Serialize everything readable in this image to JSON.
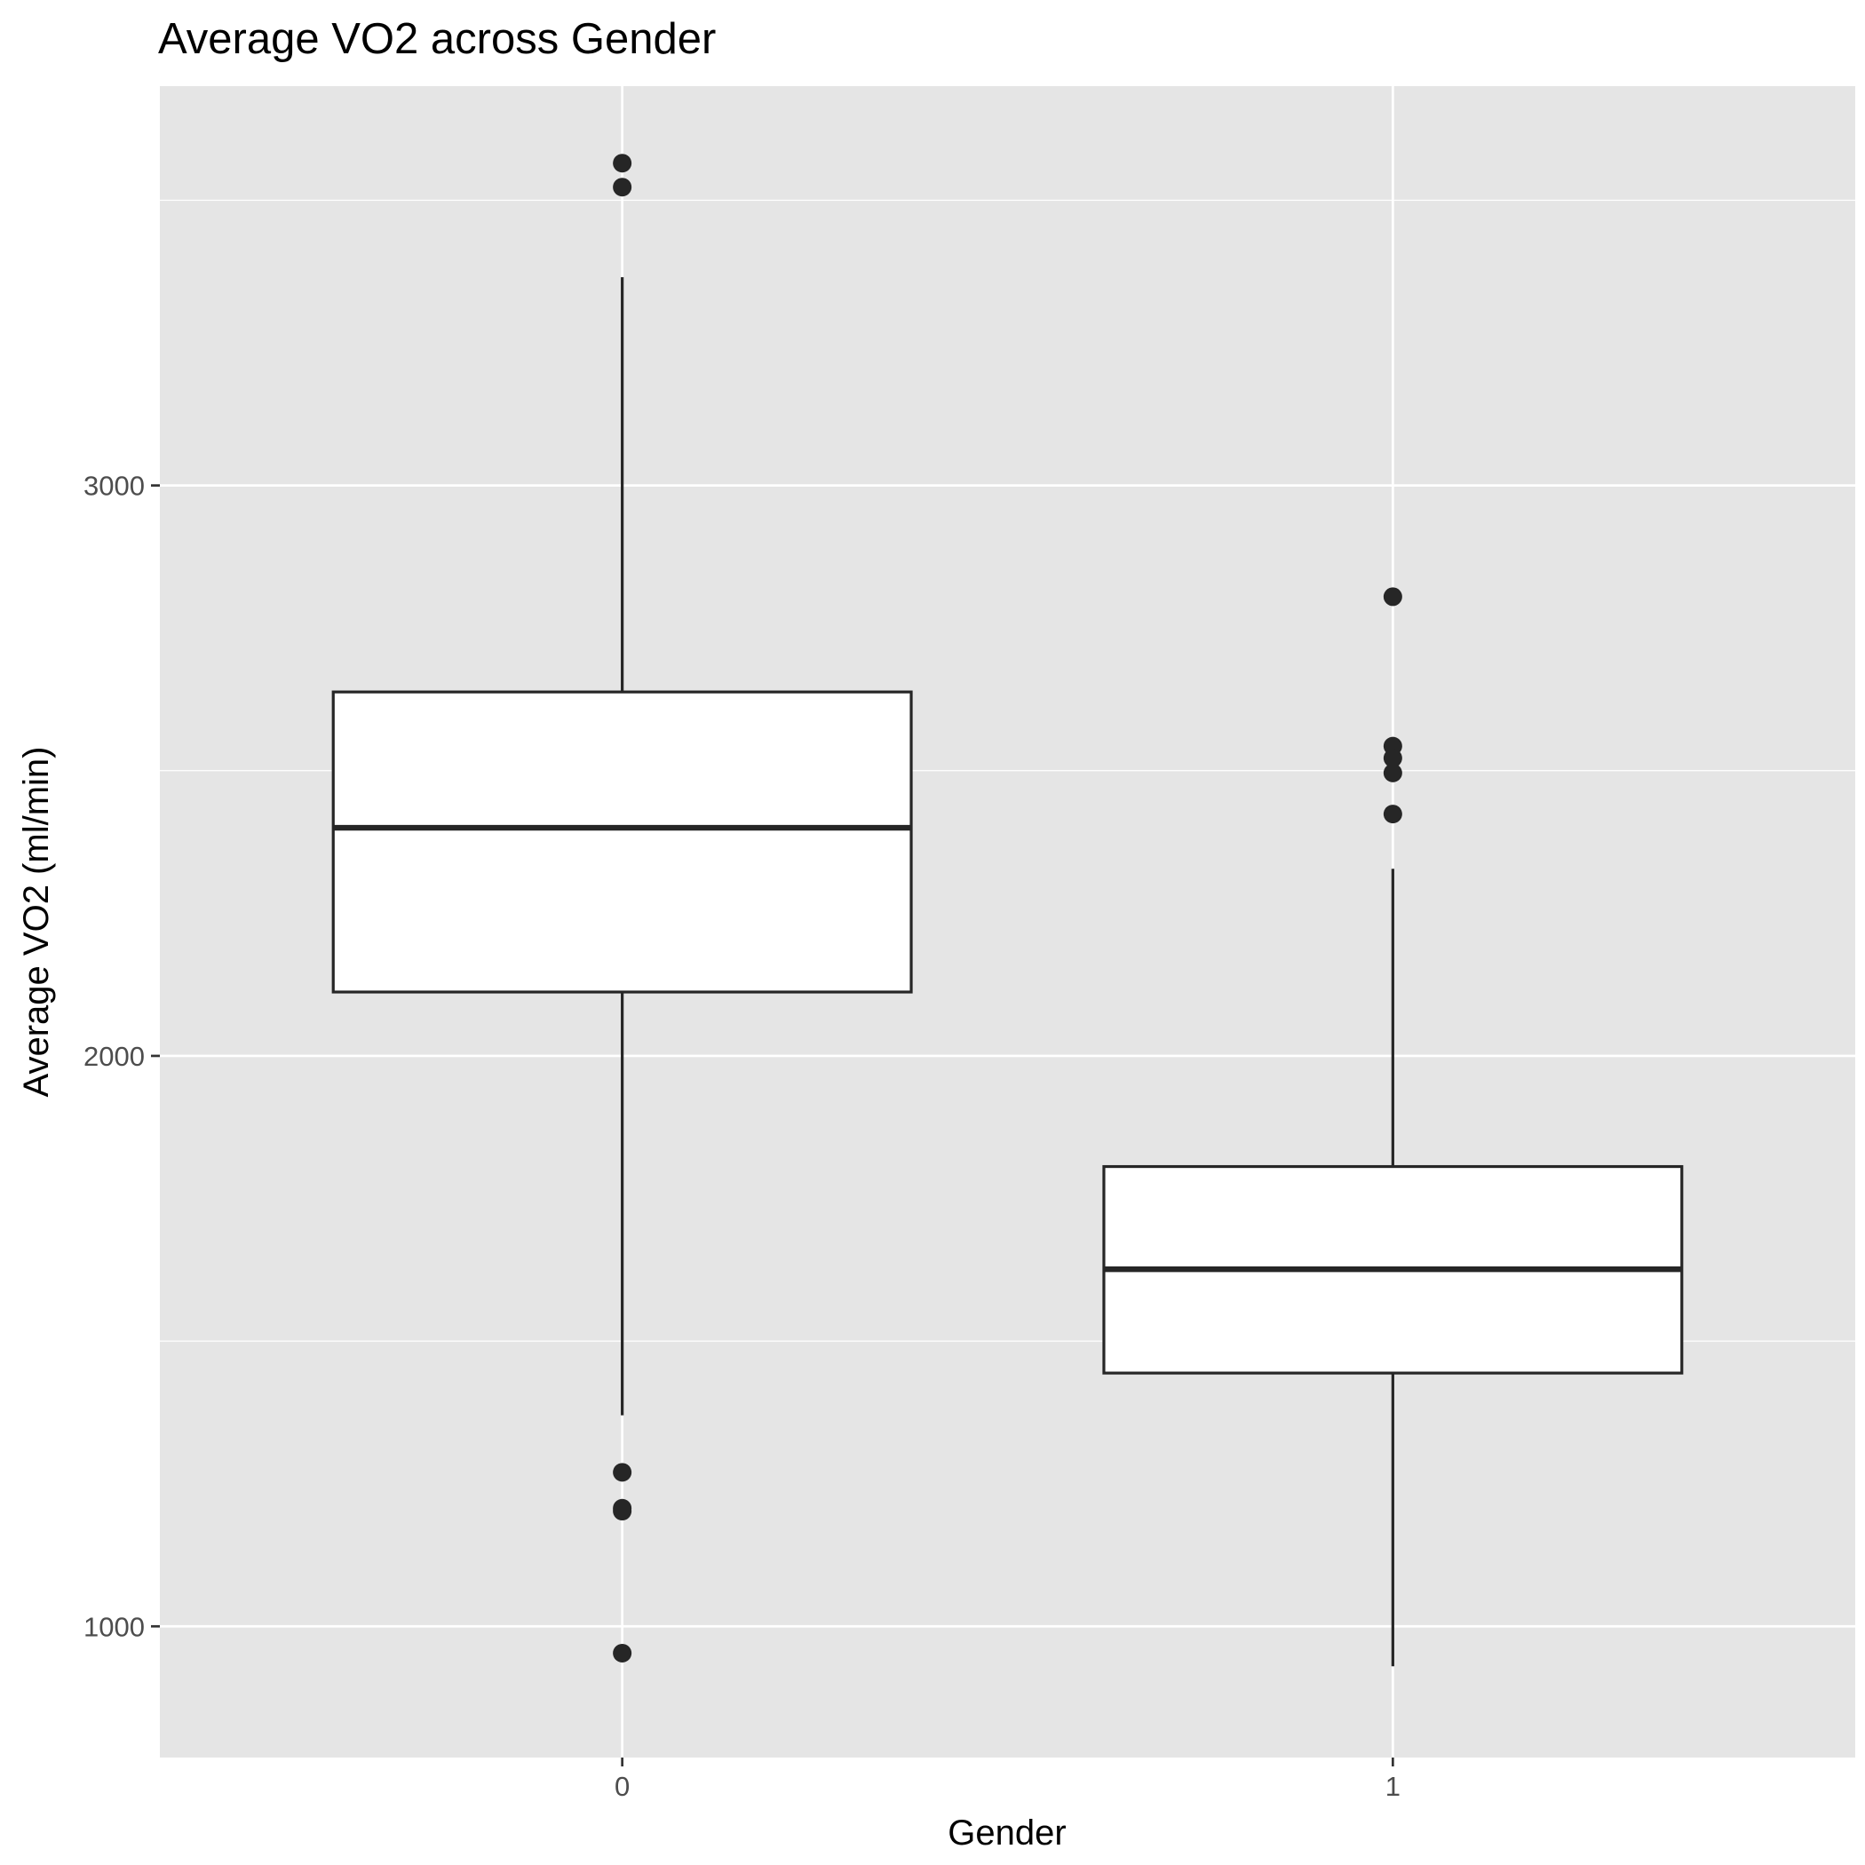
{
  "chart_data": {
    "type": "boxplot",
    "title": "Average VO2 across Gender",
    "xlabel": "Gender",
    "ylabel": "Average VO2 (ml/min)",
    "categories": [
      "0",
      "1"
    ],
    "ylim": [
      770,
      3700
    ],
    "y_major_ticks": [
      1000,
      2000,
      3000
    ],
    "y_minor_ticks": [
      1500,
      2500,
      3500
    ],
    "grid": true,
    "colors": {
      "panel": "#e5e5e5",
      "gridline": "#ffffff",
      "box_fill": "#ffffff",
      "box_stroke": "#262626",
      "outlier": "#262626",
      "tick_label": "#4d4d4d"
    },
    "boxes": [
      {
        "category": "0",
        "whisker_low": 1370,
        "q1": 2112,
        "median": 2400,
        "q3": 2638,
        "whisker_high": 3365,
        "outliers": [
          3565,
          3523,
          1270,
          1207,
          1202,
          953
        ]
      },
      {
        "category": "1",
        "whisker_low": 930,
        "q1": 1444,
        "median": 1626,
        "q3": 1806,
        "whisker_high": 2328,
        "outliers": [
          2805,
          2543,
          2522,
          2496,
          2424
        ]
      }
    ]
  }
}
